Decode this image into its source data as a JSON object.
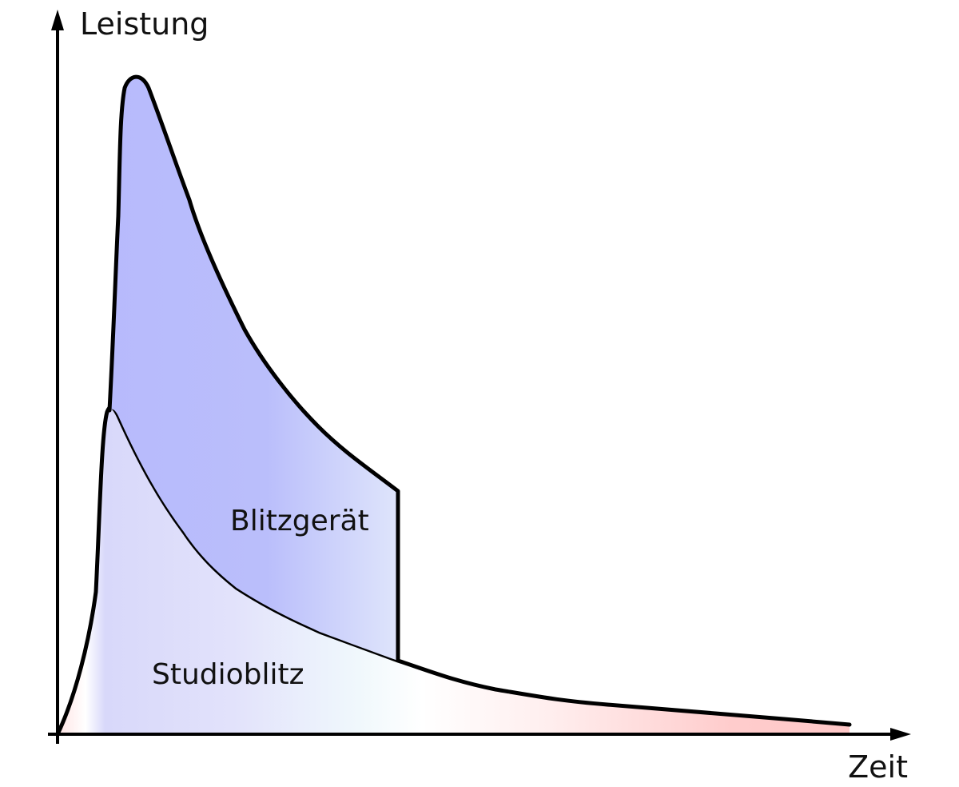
{
  "diagram": {
    "y_axis_label": "Leistung",
    "x_axis_label": "Zeit",
    "curves": [
      {
        "name": "Blitzgerät",
        "fill": "#b3b7fb",
        "stroke": "#000000"
      },
      {
        "name": "Studioblitz",
        "fill": "#dcdcfa",
        "stroke": "#000000"
      }
    ],
    "colors": {
      "blitzgeraet_dark": "#b3b7fb",
      "blitzgeraet_light": "#e0e6fb",
      "studioblitz_blue": "#d8d8fa",
      "studioblitz_cyan": "#f0fafc",
      "studioblitz_red": "#ffc8c8",
      "axis": "#000000"
    }
  }
}
